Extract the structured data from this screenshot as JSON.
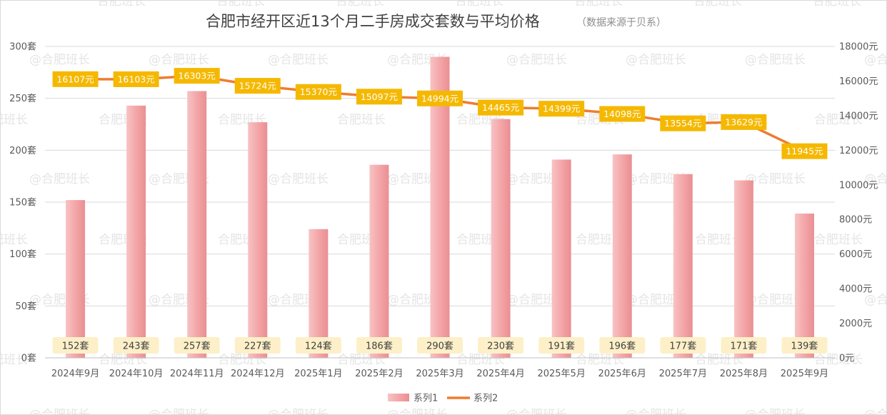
{
  "chart_data": {
    "type": "bar+line",
    "title": "合肥市经开区近13个月二手房成交套数与平均价格",
    "subtitle": "（数据来源于贝系）",
    "categories": [
      "2024年9月",
      "2024年10月",
      "2024年11月",
      "2024年12月",
      "2025年1月",
      "2025年2月",
      "2025年3月",
      "2025年4月",
      "2025年5月",
      "2025年6月",
      "2025年7月",
      "2025年8月",
      "2025年9月"
    ],
    "series": [
      {
        "name": "系列1",
        "type": "bar",
        "axis": "left",
        "values": [
          152,
          243,
          257,
          227,
          124,
          186,
          290,
          230,
          191,
          196,
          177,
          171,
          139
        ],
        "labels": [
          "152套",
          "243套",
          "257套",
          "227套",
          "124套",
          "186套",
          "290套",
          "230套",
          "191套",
          "196套",
          "177套",
          "171套",
          "139套"
        ],
        "color": "#f4a6a8"
      },
      {
        "name": "系列2",
        "type": "line",
        "axis": "right",
        "values": [
          16107,
          16103,
          16303,
          15724,
          15370,
          15097,
          14994,
          14465,
          14399,
          14098,
          13554,
          13629,
          11945
        ],
        "labels": [
          "16107元",
          "16103元",
          "16303元",
          "15724元",
          "15370元",
          "15097元",
          "14994元",
          "14465元",
          "14399元",
          "14098元",
          "13554元",
          "13629元",
          "11945元"
        ],
        "color": "#ed7d31"
      }
    ],
    "y_left": {
      "ylim": [
        0,
        300
      ],
      "ticks": [
        0,
        50,
        100,
        150,
        200,
        250,
        300
      ],
      "tick_labels": [
        "0套",
        "50套",
        "100套",
        "150套",
        "200套",
        "250套",
        "300套"
      ]
    },
    "y_right": {
      "ylim": [
        0,
        18000
      ],
      "ticks": [
        0,
        2000,
        4000,
        6000,
        8000,
        10000,
        12000,
        14000,
        16000,
        18000
      ],
      "tick_labels": [
        "0元",
        "2000元",
        "4000元",
        "6000元",
        "8000元",
        "10000元",
        "12000元",
        "14000元",
        "16000元",
        "18000元"
      ]
    },
    "grid": true,
    "legend_position": "bottom",
    "label_box_color": "#f5b800",
    "count_box_color": "#fdf0c8",
    "watermark": "@合肥班长"
  }
}
